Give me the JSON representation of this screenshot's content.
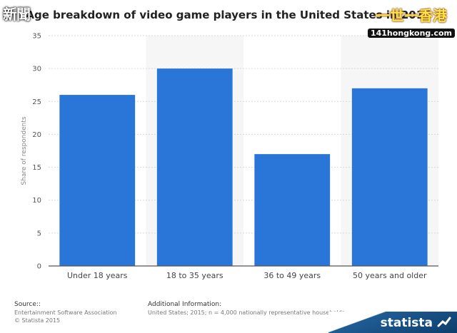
{
  "logos": {
    "left_watermark": "新聞",
    "right_watermark_big": "一世一香港",
    "right_watermark_small": "141hongkong.com"
  },
  "chart_data": {
    "type": "bar",
    "title": "Age breakdown of video game players in the United States in 2015",
    "categories": [
      "Under 18 years",
      "18 to 35 years",
      "36 to 49 years",
      "50 years and older"
    ],
    "values": [
      26,
      30,
      17,
      27
    ],
    "xlabel": "",
    "ylabel": "Share of respondents",
    "ylim": [
      0,
      35
    ],
    "yticks": [
      0,
      5,
      10,
      15,
      20,
      25,
      30,
      35
    ],
    "bar_color": "#2a76d8",
    "grid": true,
    "alternating_column_shading": true
  },
  "footer": {
    "source_heading": "Source::",
    "source_lines": [
      "Entertainment Software Association",
      "© Statista 2015"
    ],
    "info_heading": "Additional Information:",
    "info_text": "United States; 2015; n = 4,000 nationally representative households",
    "brand": "statista"
  }
}
